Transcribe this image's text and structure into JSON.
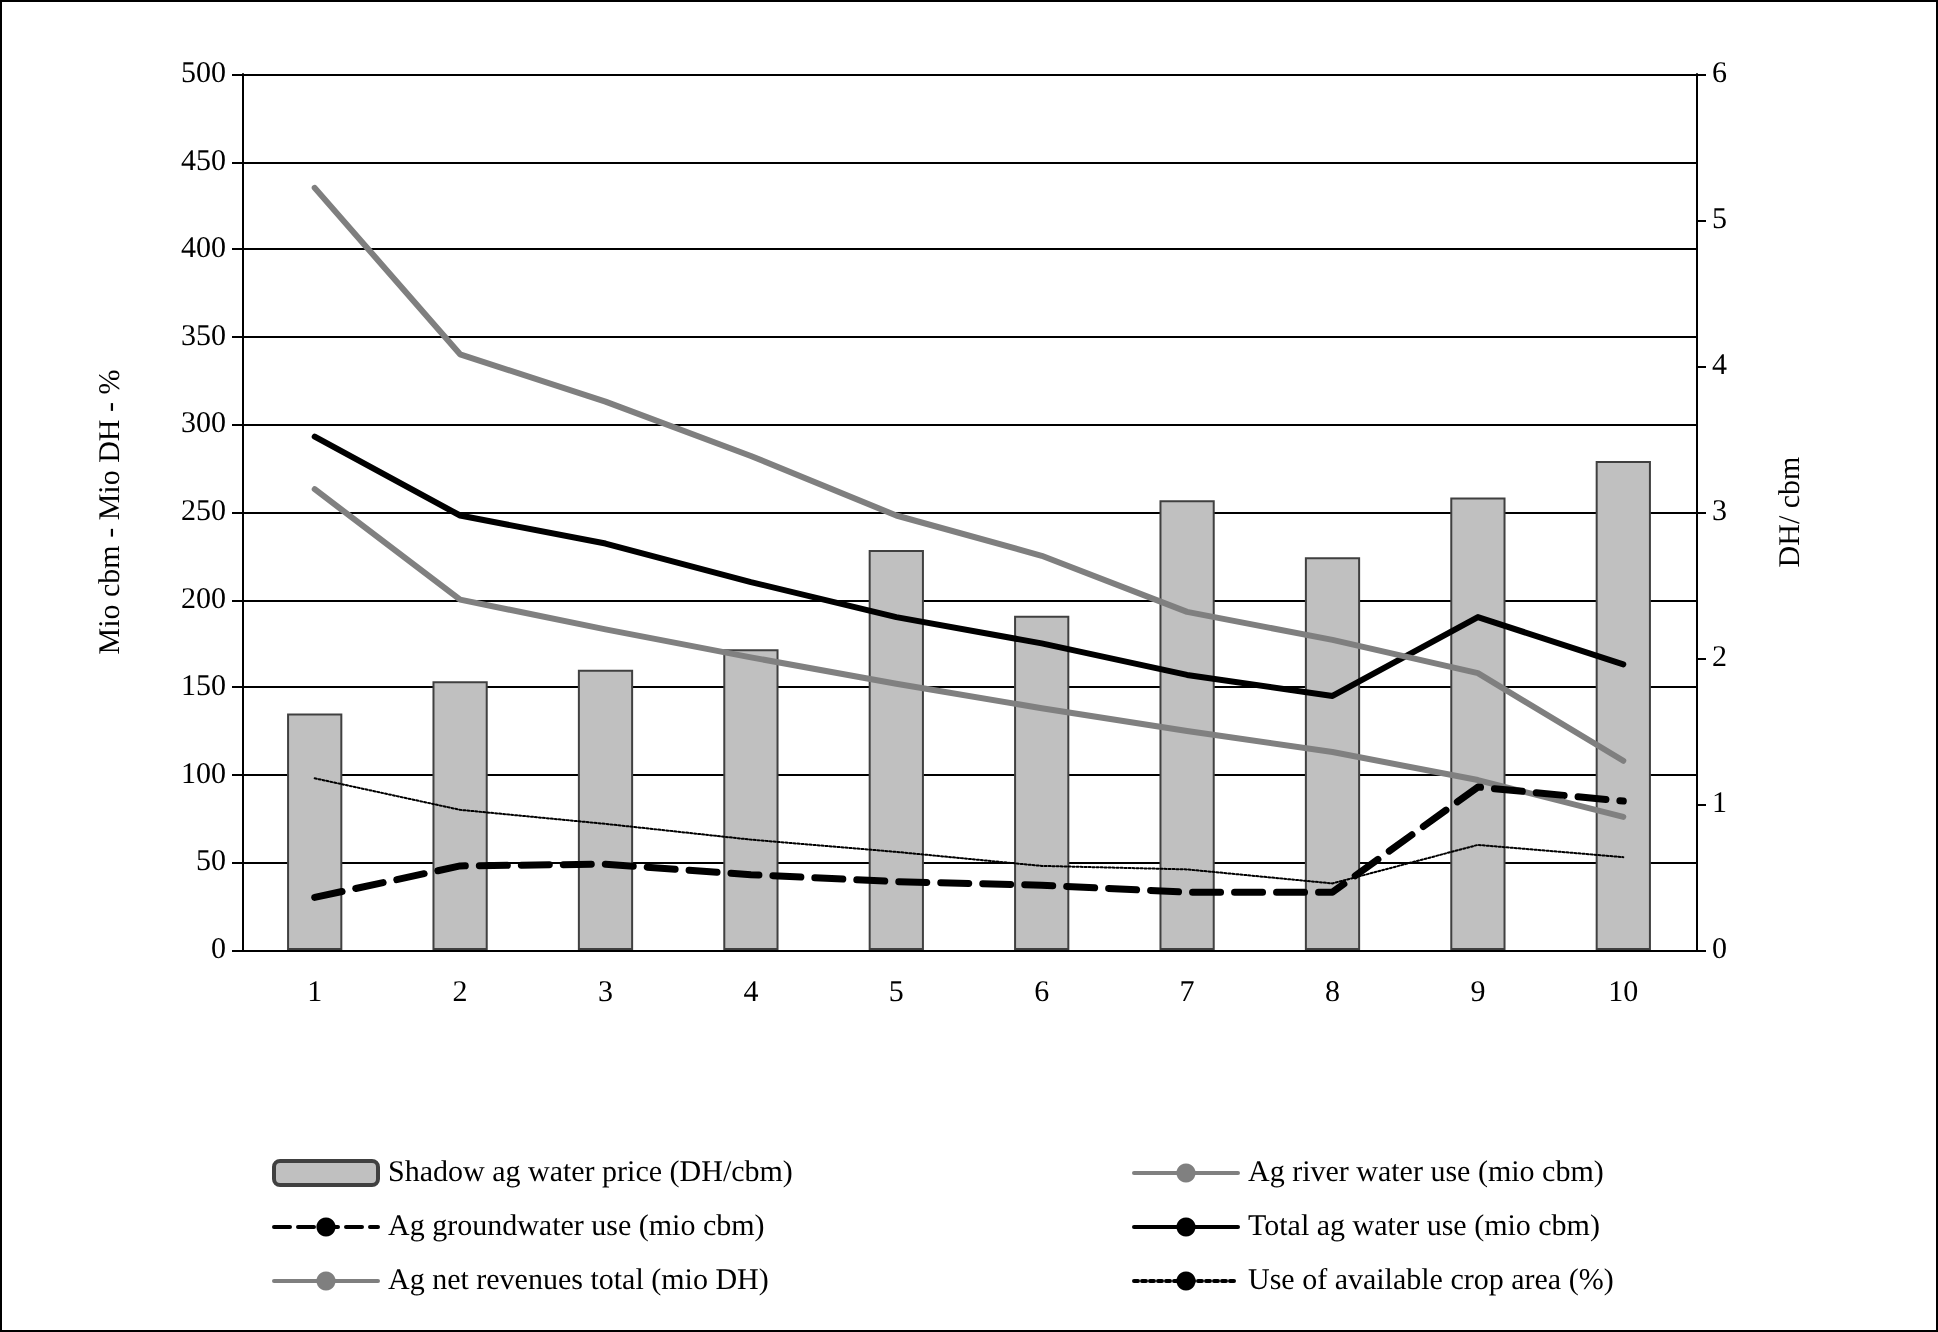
{
  "chart_data": {
    "type": "line",
    "categories": [
      "1",
      "2",
      "3",
      "4",
      "5",
      "6",
      "7",
      "8",
      "9",
      "10"
    ],
    "ylabel": "Mio cbm - Mio DH - %",
    "y2label": "DH/ cbm",
    "ylim": [
      0,
      500
    ],
    "yticks": [
      0,
      50,
      100,
      150,
      200,
      250,
      300,
      350,
      400,
      450,
      500
    ],
    "y2lim": [
      0,
      6
    ],
    "y2ticks": [
      0,
      1,
      2,
      3,
      4,
      5,
      6
    ],
    "grid": "y",
    "legend": "bottom",
    "marker": "none",
    "series": [
      {
        "name": "Shadow ag water price (DH/cbm)",
        "type": "bar",
        "axis": "y2",
        "color": "#c0c0c0",
        "values": [
          1.62,
          1.84,
          1.92,
          2.06,
          2.74,
          2.29,
          3.08,
          2.69,
          3.1,
          3.35
        ]
      },
      {
        "name": "Ag river water use (mio cbm)",
        "color": "#808080",
        "line_style": "solid",
        "values": [
          263,
          200,
          183,
          167,
          152,
          138,
          125,
          113,
          97,
          76
        ]
      },
      {
        "name": "Ag groundwater use (mio cbm)",
        "color": "#000000",
        "line_style": "dashed",
        "values": [
          30,
          48,
          49,
          43,
          39,
          37,
          33,
          33,
          93,
          85
        ]
      },
      {
        "name": "Total ag water use (mio cbm)",
        "color": "#000000",
        "line_style": "solid",
        "values": [
          293,
          248,
          232,
          210,
          190,
          175,
          157,
          145,
          190,
          163
        ]
      },
      {
        "name": "Ag net revenues total (mio DH)",
        "color": "#7f7f7f",
        "line_style": "solid",
        "values": [
          435,
          340,
          313,
          282,
          248,
          225,
          193,
          177,
          158,
          108
        ]
      },
      {
        "name": "Use of available crop area (%)",
        "color": "#000000",
        "line_style": "dotted",
        "values": [
          98,
          80,
          72,
          63,
          56,
          48,
          46,
          38,
          60,
          53
        ]
      }
    ]
  }
}
